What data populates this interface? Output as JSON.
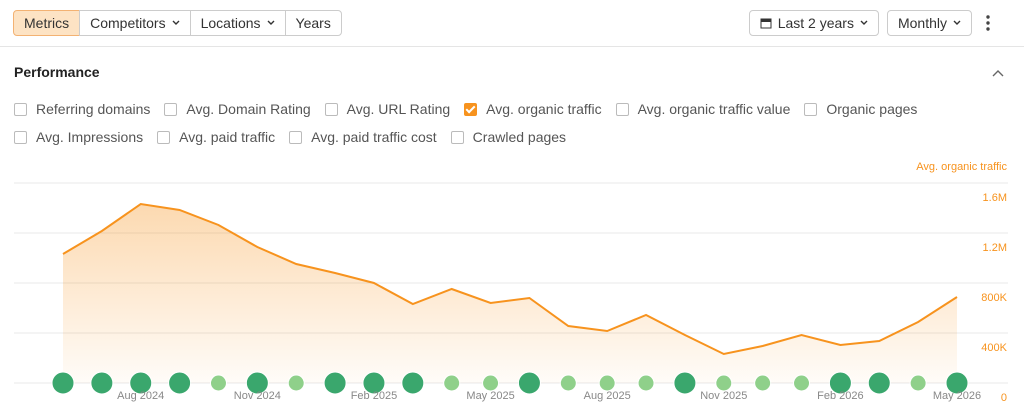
{
  "toolbar": {
    "tabs": [
      {
        "label": "Metrics",
        "active": true,
        "menu": false
      },
      {
        "label": "Competitors",
        "active": false,
        "menu": true
      },
      {
        "label": "Locations",
        "active": false,
        "menu": true
      },
      {
        "label": "Years",
        "active": false,
        "menu": false
      }
    ],
    "range": "Last 2 years",
    "interval": "Monthly"
  },
  "section": {
    "title": "Performance",
    "options": [
      [
        {
          "label": "Referring domains",
          "checked": false
        },
        {
          "label": "Avg. Domain Rating",
          "checked": false
        },
        {
          "label": "Avg. URL Rating",
          "checked": false
        },
        {
          "label": "Avg. organic traffic",
          "checked": true
        },
        {
          "label": "Avg. organic traffic value",
          "checked": false
        },
        {
          "label": "Organic pages",
          "checked": false
        }
      ],
      [
        {
          "label": "Avg. Impressions",
          "checked": false
        },
        {
          "label": "Avg. paid traffic",
          "checked": false
        },
        {
          "label": "Avg. paid traffic cost",
          "checked": false
        },
        {
          "label": "Crawled pages",
          "checked": false
        }
      ]
    ]
  },
  "chart_data": {
    "type": "area",
    "categories": [
      null,
      null,
      "Aug 2024",
      null,
      null,
      "Nov 2024",
      null,
      null,
      "Feb 2025",
      null,
      null,
      "May 2025",
      null,
      null,
      "Aug 2025",
      null,
      null,
      "Nov 2025",
      null,
      null,
      "Feb 2026",
      null,
      null,
      "May 2026"
    ],
    "series": [
      {
        "name": "Avg. organic traffic",
        "color": "#f7931e",
        "values": [
          1032000,
          1216000,
          1432000,
          1384000,
          1264000,
          1088000,
          952000,
          880000,
          800000,
          632000,
          752000,
          640000,
          680000,
          456000,
          416000,
          544000,
          384000,
          232000,
          296000,
          384000,
          304000,
          336000,
          488000,
          688000
        ]
      }
    ],
    "ylim": [
      0,
      1600000
    ],
    "yticks": [
      0,
      {
        "value": 400000,
        "label": "400K"
      },
      {
        "value": 800000,
        "label": "800K"
      },
      {
        "value": 1200000,
        "label": "1.2M"
      },
      {
        "value": 1600000,
        "label": "1.6M"
      }
    ],
    "grid": true
  }
}
